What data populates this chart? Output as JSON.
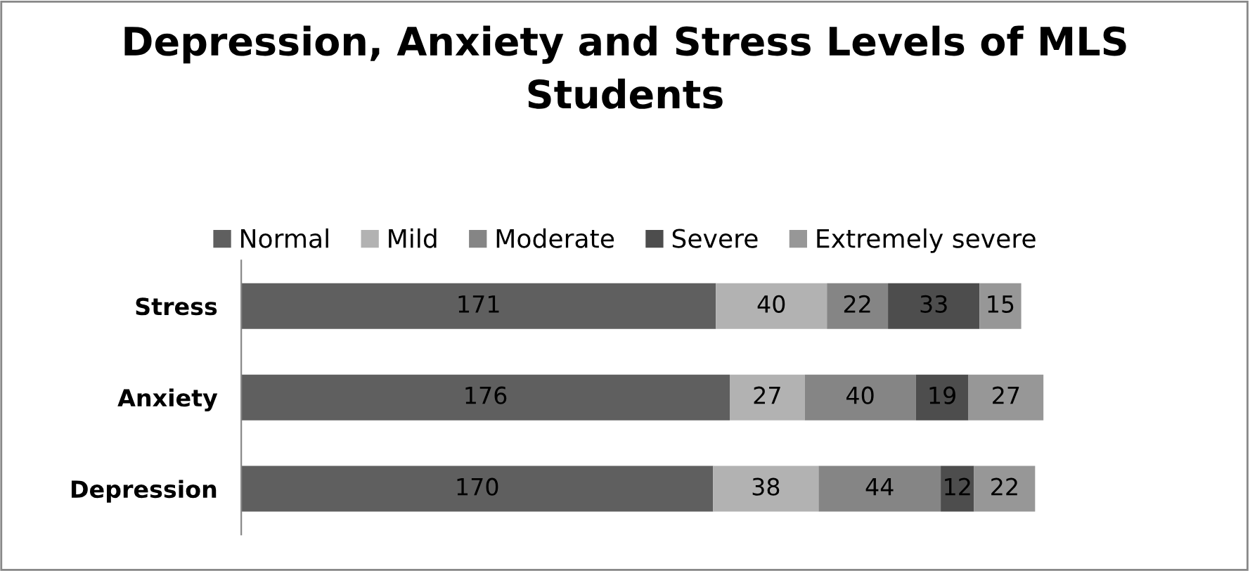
{
  "chart_data": {
    "type": "bar",
    "orientation": "horizontal",
    "stacked": true,
    "title": "Depression, Anxiety and Stress Levels of MLS\nStudents",
    "categories": [
      "Stress",
      "Anxiety",
      "Depression"
    ],
    "series": [
      {
        "name": "Normal",
        "color": "#5f5f5f",
        "values": [
          171,
          176,
          170
        ]
      },
      {
        "name": "Mild",
        "color": "#b2b2b2",
        "values": [
          40,
          27,
          38
        ]
      },
      {
        "name": "Moderate",
        "color": "#858585",
        "values": [
          22,
          40,
          44
        ]
      },
      {
        "name": "Severe",
        "color": "#4d4d4d",
        "values": [
          33,
          19,
          12
        ]
      },
      {
        "name": "Extremely severe",
        "color": "#979797",
        "values": [
          15,
          27,
          22
        ]
      }
    ],
    "data_labels": true,
    "legend": "top",
    "tick_labels": "y",
    "grid": false
  }
}
